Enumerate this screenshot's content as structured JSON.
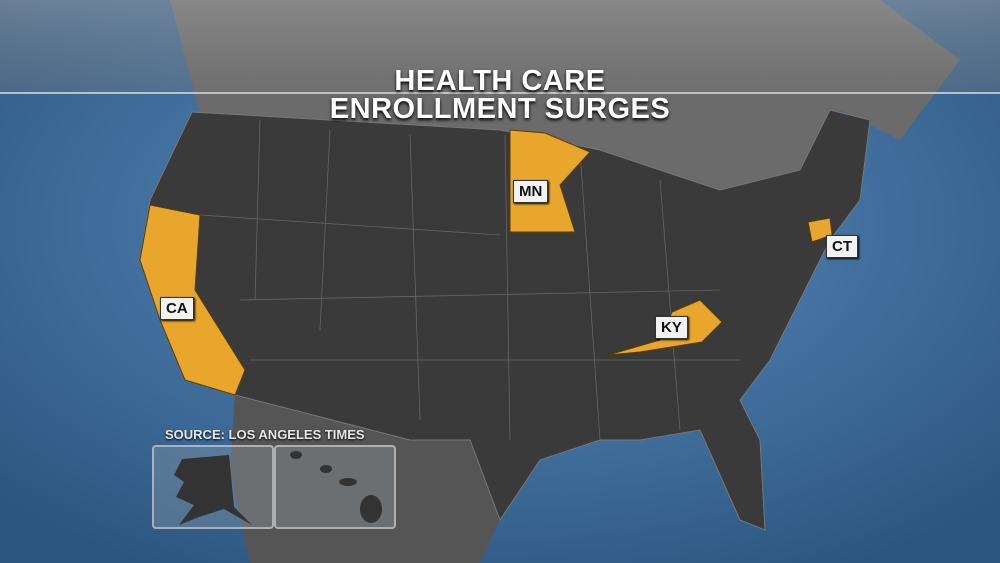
{
  "title": {
    "line1": "HEALTH CARE",
    "line2": "ENROLLMENT SURGES"
  },
  "highlighted_states": [
    {
      "abbr": "CA",
      "label": "CA"
    },
    {
      "abbr": "MN",
      "label": "MN"
    },
    {
      "abbr": "KY",
      "label": "KY"
    },
    {
      "abbr": "CT",
      "label": "CT"
    }
  ],
  "source": "SOURCE: LOS ANGELES TIMES",
  "insets": [
    "alaska",
    "hawaii"
  ],
  "colors": {
    "ocean": "#3f6f9e",
    "land": "#3a3a3a",
    "highlight": "#e8a62c",
    "canada": "#6b6b6b"
  }
}
